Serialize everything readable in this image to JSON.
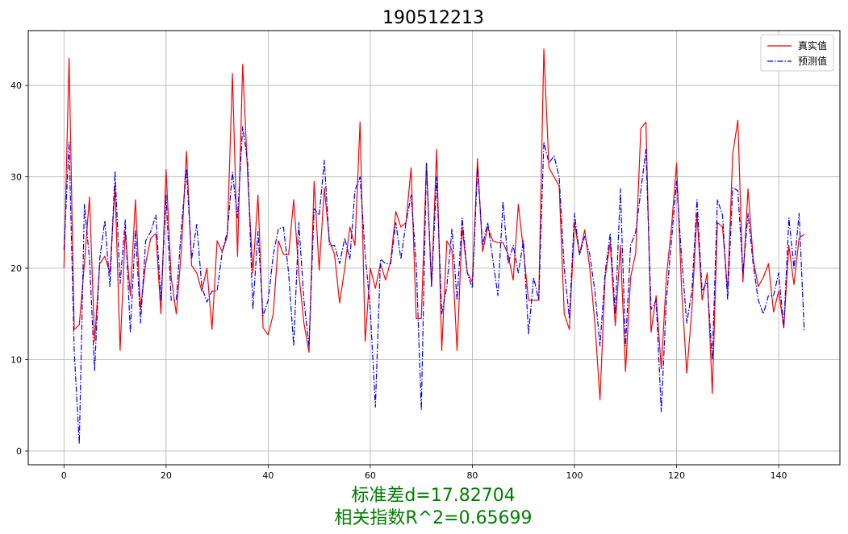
{
  "chart_data": {
    "type": "line",
    "title": "190512213",
    "xlabel": "",
    "ylabel": "",
    "xlim": [
      -7,
      152
    ],
    "ylim": [
      -1.5,
      46
    ],
    "x_ticks": [
      0,
      20,
      40,
      60,
      80,
      100,
      120,
      140
    ],
    "y_ticks": [
      0,
      10,
      20,
      30,
      40
    ],
    "grid": true,
    "legend_position": "top-right",
    "series": [
      {
        "name": "真实值",
        "color": "#ff0000",
        "style": "solid",
        "values": [
          20.0,
          43.0,
          13.3,
          13.8,
          20.5,
          27.8,
          12.0,
          20.5,
          21.3,
          19.5,
          29.0,
          11.0,
          24.0,
          17.0,
          27.5,
          15.5,
          20.5,
          23.3,
          23.8,
          15.0,
          30.8,
          19.0,
          15.0,
          22.0,
          32.8,
          20.3,
          19.5,
          17.5,
          20.0,
          13.3,
          23.0,
          21.8,
          23.5,
          41.3,
          21.3,
          42.3,
          30.0,
          19.5,
          28.0,
          13.5,
          12.7,
          15.0,
          23.0,
          21.5,
          21.5,
          27.5,
          19.5,
          14.0,
          10.8,
          29.5,
          19.8,
          28.8,
          23.0,
          21.5,
          16.2,
          20.0,
          24.5,
          22.5,
          36.0,
          12.0,
          20.0,
          17.8,
          20.5,
          18.7,
          20.8,
          26.2,
          24.5,
          25.0,
          31.0,
          14.5,
          14.5,
          31.5,
          18.0,
          33.0,
          11.0,
          23.0,
          22.0,
          11.0,
          24.5,
          19.5,
          18.5,
          32.0,
          21.8,
          24.5,
          23.0,
          22.8,
          22.8,
          21.5,
          18.7,
          27.0,
          22.0,
          16.5,
          16.5,
          16.5,
          44.0,
          31.0,
          30.0,
          29.0,
          15.0,
          13.3,
          25.0,
          21.5,
          24.2,
          20.0,
          14.0,
          5.6,
          19.0,
          22.8,
          13.7,
          22.5,
          8.7,
          19.0,
          21.7,
          35.3,
          36.0,
          13.0,
          17.0,
          9.0,
          19.0,
          24.5,
          31.5,
          17.5,
          8.5,
          15.5,
          26.0,
          16.5,
          19.5,
          6.3,
          25.0,
          24.5,
          17.5,
          32.5,
          36.2,
          18.5,
          28.7,
          21.0,
          18.0,
          19.0,
          20.5,
          15.2,
          17.5,
          13.5,
          22.5,
          18.2,
          23.3,
          23.7
        ]
      },
      {
        "name": "预测值",
        "color": "#0000ff",
        "style": "dashdot",
        "values": [
          22.0,
          33.8,
          11.0,
          0.8,
          27.0,
          21.0,
          8.8,
          21.0,
          25.2,
          18.0,
          30.6,
          18.3,
          25.3,
          13.0,
          24.2,
          14.0,
          23.0,
          24.0,
          25.8,
          16.5,
          28.0,
          16.5,
          16.5,
          24.5,
          30.8,
          21.0,
          24.8,
          18.0,
          16.3,
          17.5,
          17.5,
          21.8,
          24.0,
          30.5,
          25.5,
          35.5,
          31.5,
          15.5,
          24.0,
          14.8,
          16.5,
          21.5,
          24.3,
          24.5,
          19.5,
          11.5,
          25.0,
          16.5,
          11.5,
          26.5,
          25.8,
          31.8,
          22.5,
          22.5,
          20.5,
          23.3,
          21.0,
          28.5,
          30.0,
          21.5,
          15.5,
          4.8,
          21.0,
          20.5,
          20.5,
          25.0,
          21.0,
          25.0,
          28.0,
          20.5,
          4.5,
          31.5,
          18.0,
          30.0,
          15.0,
          18.0,
          24.3,
          16.5,
          25.5,
          19.5,
          17.8,
          31.0,
          22.5,
          25.0,
          21.0,
          17.0,
          27.3,
          20.5,
          22.5,
          19.5,
          23.0,
          12.8,
          19.0,
          16.5,
          33.8,
          31.5,
          32.3,
          30.0,
          20.0,
          14.5,
          26.0,
          21.5,
          23.5,
          21.5,
          17.5,
          11.5,
          19.5,
          23.8,
          15.0,
          28.7,
          11.5,
          22.5,
          24.0,
          28.5,
          33.0,
          15.5,
          16.5,
          4.3,
          16.5,
          23.0,
          29.5,
          21.0,
          14.0,
          17.5,
          27.5,
          17.5,
          18.5,
          10.0,
          27.5,
          25.8,
          16.5,
          28.8,
          28.5,
          19.5,
          26.0,
          20.5,
          16.5,
          15.0,
          17.0,
          17.0,
          19.5,
          13.5,
          25.5,
          20.0,
          26.0,
          13.2
        ]
      }
    ],
    "caption_lines": [
      "标准差d=17.82704",
      "相关指数R^2=0.65699"
    ]
  }
}
